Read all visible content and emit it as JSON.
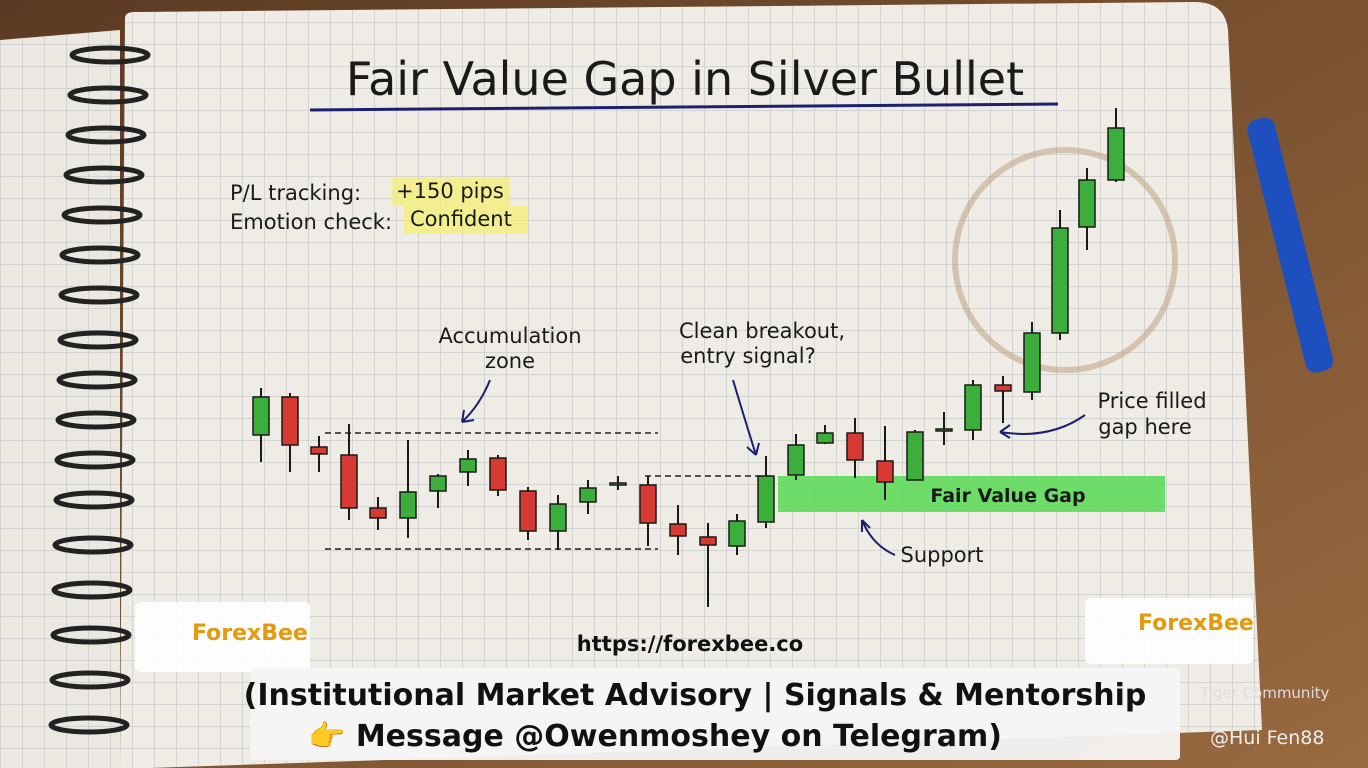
{
  "title": "Fair Value Gap in Silver Bullet",
  "tracking": {
    "pl_label": "P/L tracking:",
    "pl_value": "+150 pips",
    "emotion_label": "Emotion check:",
    "emotion_value": "Confident"
  },
  "annotations": {
    "accumulation": [
      "Accumulation",
      "zone"
    ],
    "breakout": [
      "Clean breakout,",
      "entry signal?"
    ],
    "filled": [
      "Price filled",
      "gap here"
    ],
    "fvg": "Fair Value Gap",
    "support": "Support"
  },
  "footer": {
    "url": "https://forexbee.co",
    "logo_left": "ForexBee",
    "logo_right": "ForexBee",
    "banner": [
      "(Institutional Market Advisory | Signals & Mentorship",
      "👉 Message @Owenmoshey on Telegram)"
    ]
  },
  "watermark": {
    "community": "Tiger Community",
    "user": "@Hui Fen88"
  }
}
